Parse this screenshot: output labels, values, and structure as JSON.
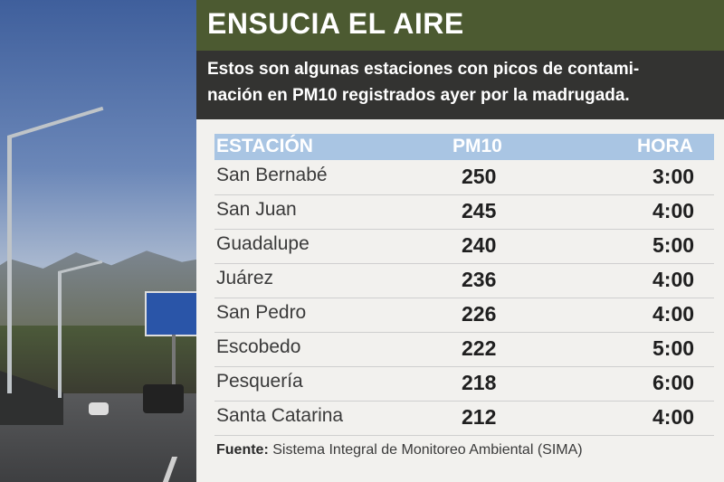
{
  "header": {
    "title": "ENSUCIA EL AIRE",
    "subtitle_lines": [
      "Estos son algunas estaciones con picos de contami-",
      "nación en PM10 registrados ayer por la madrugada."
    ]
  },
  "table": {
    "columns": [
      "ESTACIÓN",
      "PM10",
      "HORA"
    ],
    "rows": [
      {
        "station": "San Bernabé",
        "pm10": "250",
        "hour": "3:00"
      },
      {
        "station": "San Juan",
        "pm10": "245",
        "hour": "4:00"
      },
      {
        "station": "Guadalupe",
        "pm10": "240",
        "hour": "5:00"
      },
      {
        "station": "Juárez",
        "pm10": "236",
        "hour": "4:00"
      },
      {
        "station": "San Pedro",
        "pm10": "226",
        "hour": "4:00"
      },
      {
        "station": "Escobedo",
        "pm10": "222",
        "hour": "5:00"
      },
      {
        "station": "Pesquería",
        "pm10": "218",
        "hour": "6:00"
      },
      {
        "station": "Santa Catarina",
        "pm10": "212",
        "hour": "4:00"
      }
    ]
  },
  "source": {
    "label": "Fuente:",
    "text": " Sistema Integral de Monitoreo Ambiental (SIMA)"
  },
  "colors": {
    "title_bar": "#4c5a31",
    "subtitle_bar": "#333331",
    "table_header": "#a9c5e3",
    "panel_bg": "#f2f1ee"
  }
}
